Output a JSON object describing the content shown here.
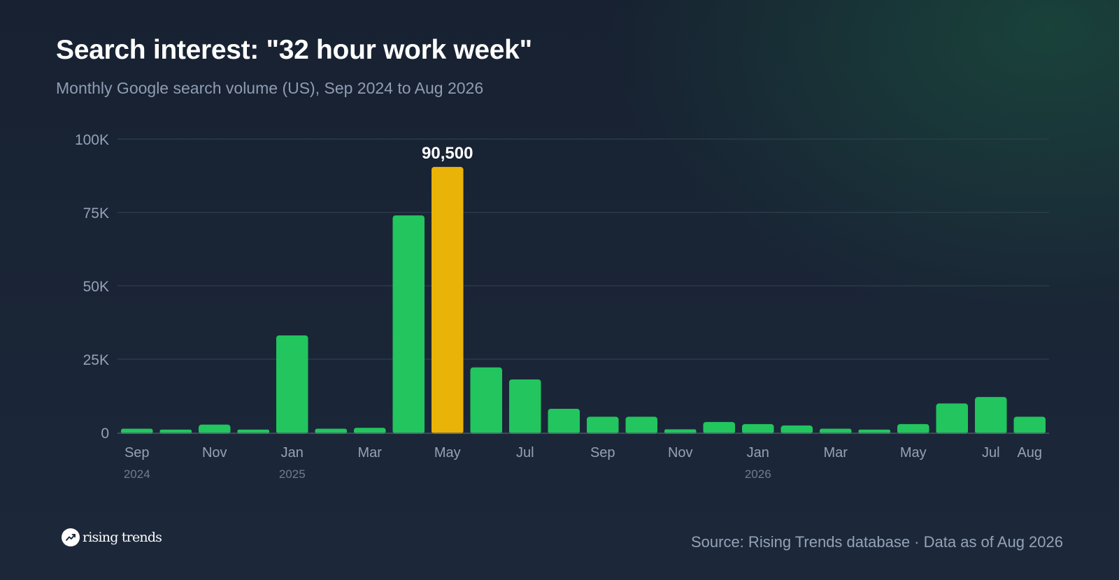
{
  "header": {
    "title": "Search interest: \"32 hour work week\"",
    "subtitle": "Monthly Google search volume (US), Sep 2024 to Aug 2026"
  },
  "footer": {
    "brand": "rising trends",
    "brand_icon": "trending-up-icon",
    "source": "Source: Rising Trends database · Data as of Aug 2026"
  },
  "colors": {
    "bar": "#22c55e",
    "highlight": "#eab308",
    "grid": "#2f3f4f",
    "axis_text": "#94a2b8",
    "year_text": "#6f7d92"
  },
  "chart_data": {
    "type": "bar",
    "title": "Search interest: \"32 hour work week\"",
    "subtitle": "Monthly Google search volume (US), Sep 2024 to Aug 2026",
    "xlabel": "",
    "ylabel": "",
    "ylim": [
      0,
      100000
    ],
    "yticks": [
      {
        "value": 0,
        "label": "0"
      },
      {
        "value": 25000,
        "label": "25K"
      },
      {
        "value": 50000,
        "label": "50K"
      },
      {
        "value": 75000,
        "label": "75K"
      },
      {
        "value": 100000,
        "label": "100K"
      }
    ],
    "grid": true,
    "categories": [
      "Sep 2024",
      "Oct 2024",
      "Nov 2024",
      "Dec 2024",
      "Jan 2025",
      "Feb 2025",
      "Mar 2025",
      "Apr 2025",
      "May 2025",
      "Jun 2025",
      "Jul 2025",
      "Aug 2025",
      "Sep 2025",
      "Oct 2025",
      "Nov 2025",
      "Dec 2025",
      "Jan 2026",
      "Feb 2026",
      "Mar 2026",
      "Apr 2026",
      "May 2026",
      "Jun 2026",
      "Jul 2026",
      "Aug 2026"
    ],
    "values": [
      1300,
      1000,
      2700,
      1000,
      33100,
      1300,
      1600,
      74000,
      90500,
      22200,
      18100,
      8100,
      5400,
      5400,
      1100,
      3600,
      2900,
      2400,
      1300,
      1000,
      2900,
      9900,
      12100,
      5400
    ],
    "highlight_index": 8,
    "data_labels": [
      {
        "index": 8,
        "text": "90,500"
      }
    ],
    "tick_labels": [
      {
        "index": 0,
        "label": "Sep",
        "year": "2024"
      },
      {
        "index": 2,
        "label": "Nov"
      },
      {
        "index": 4,
        "label": "Jan",
        "year": "2025"
      },
      {
        "index": 6,
        "label": "Mar"
      },
      {
        "index": 8,
        "label": "May"
      },
      {
        "index": 10,
        "label": "Jul"
      },
      {
        "index": 12,
        "label": "Sep"
      },
      {
        "index": 14,
        "label": "Nov"
      },
      {
        "index": 16,
        "label": "Jan",
        "year": "2026"
      },
      {
        "index": 18,
        "label": "Mar"
      },
      {
        "index": 20,
        "label": "May"
      },
      {
        "index": 22,
        "label": "Jul"
      },
      {
        "index": 23,
        "label": "Aug"
      }
    ]
  }
}
